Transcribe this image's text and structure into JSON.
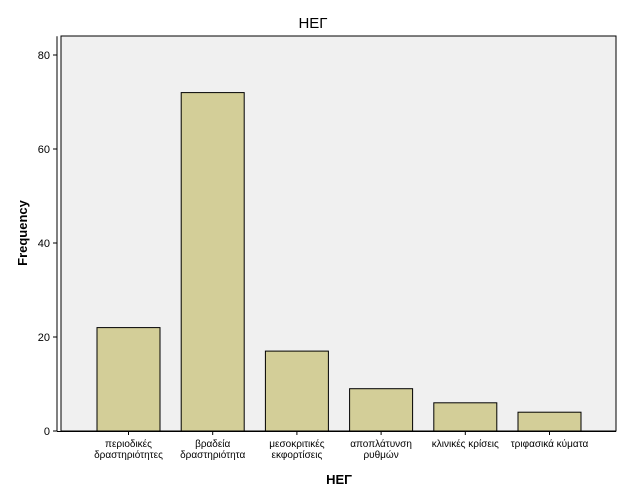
{
  "chart_data": {
    "type": "bar",
    "title": "ΗΕΓ",
    "xlabel": "ΗΕΓ",
    "ylabel": "Frequency",
    "categories": [
      [
        "περιοδικές",
        "δραστηριότητες"
      ],
      [
        "βραδεία",
        "δραστηριότητα"
      ],
      [
        "μεσοκριτικές",
        "εκφορτίσεις"
      ],
      [
        "αποπλάτυνση",
        "ρυθμών"
      ],
      [
        "κλινικές κρίσεις"
      ],
      [
        "τριφασικά κύματα"
      ]
    ],
    "values": [
      22,
      72,
      17,
      9,
      6,
      4
    ],
    "ylim": [
      0,
      84
    ],
    "yticks": [
      0,
      20,
      40,
      60,
      80
    ],
    "grid": false,
    "colors": {
      "bar_fill": "#d3ce98",
      "bar_stroke": "#000000",
      "plot_background": "#f0f0f0",
      "page_background": "#ffffff"
    }
  }
}
